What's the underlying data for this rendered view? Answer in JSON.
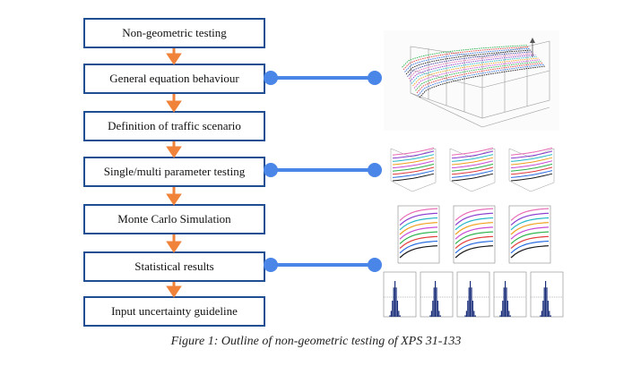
{
  "steps": [
    {
      "label": "Non-geometric testing"
    },
    {
      "label": "General equation behaviour"
    },
    {
      "label": "Definition of traffic scenario"
    },
    {
      "label": "Single/multi parameter testing"
    },
    {
      "label": "Monte Carlo Simulation"
    },
    {
      "label": "Statistical results"
    },
    {
      "label": "Input uncertainty guideline"
    }
  ],
  "connections": [
    {
      "from": "General equation behaviour",
      "to": "3d-surface-plot-panel"
    },
    {
      "from": "Single/multi parameter testing",
      "to": "parameter-testing-plots-panel"
    },
    {
      "from": "Statistical results",
      "to": "histogram-plots-panel"
    }
  ],
  "caption": "Figure 1: Outline of non-geometric testing of XPS 31-133",
  "colors": {
    "box_border": "#1f4e93",
    "arrow": "#f0823a",
    "connector": "#4a86e8"
  }
}
